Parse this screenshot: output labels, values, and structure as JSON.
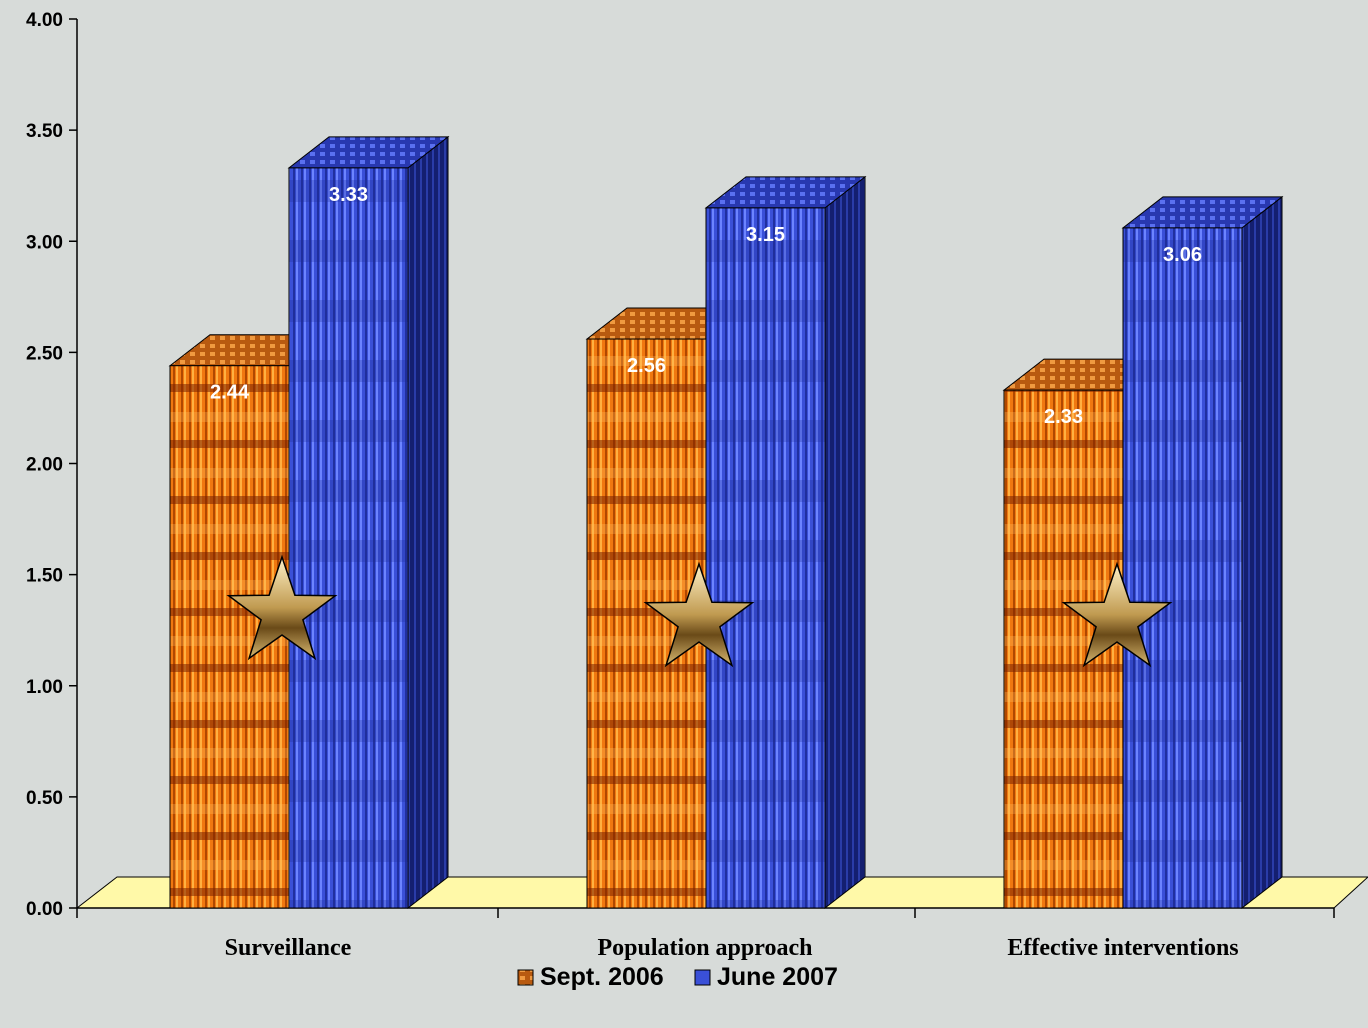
{
  "chart_data": {
    "type": "bar",
    "categories": [
      "Surveillance",
      "Population approach",
      "Effective interventions"
    ],
    "series": [
      {
        "name": "Sept. 2006",
        "values": [
          2.44,
          2.56,
          2.33
        ],
        "color": "#e07010"
      },
      {
        "name": "June 2007",
        "values": [
          3.33,
          3.15,
          3.06
        ],
        "color": "#3a50d8"
      }
    ],
    "data_labels": [
      [
        "2.44",
        "2.56",
        "2.33"
      ],
      [
        "3.33",
        "3.15",
        "3.06"
      ]
    ],
    "y_ticks": [
      "0.00",
      "0.50",
      "1.00",
      "1.50",
      "2.00",
      "2.50",
      "3.00",
      "3.50",
      "4.00"
    ],
    "ylim": [
      0,
      4
    ],
    "title": "",
    "xlabel": "",
    "ylabel": "",
    "legend": "bottom",
    "grid": false,
    "style": "3d",
    "floor_color": "#fff9a8",
    "annotation_icon": "star-icon"
  }
}
